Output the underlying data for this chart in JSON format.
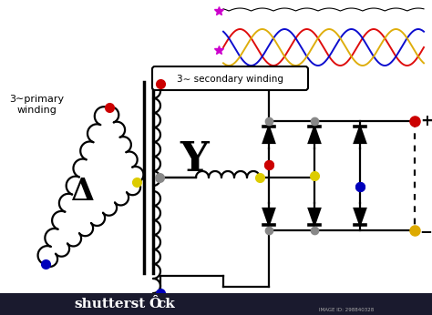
{
  "bg_color": "#ffffff",
  "colors": {
    "black": "#000000",
    "red": "#cc0000",
    "blue": "#0000bb",
    "yellow": "#ddcc00",
    "gray": "#888888",
    "magenta": "#cc00cc",
    "gold": "#ddaa00",
    "white": "#ffffff"
  },
  "wave_colors": [
    "#dd0000",
    "#0000cc",
    "#ddaa00"
  ],
  "ripple_color": "#000000",
  "text_primary_winding": "3∼primary\nwinding",
  "text_secondary_winding": "3∼ secondary winding",
  "text_Y": "Y",
  "text_delta": "Δ",
  "text_plus": "+",
  "text_minus": "−"
}
